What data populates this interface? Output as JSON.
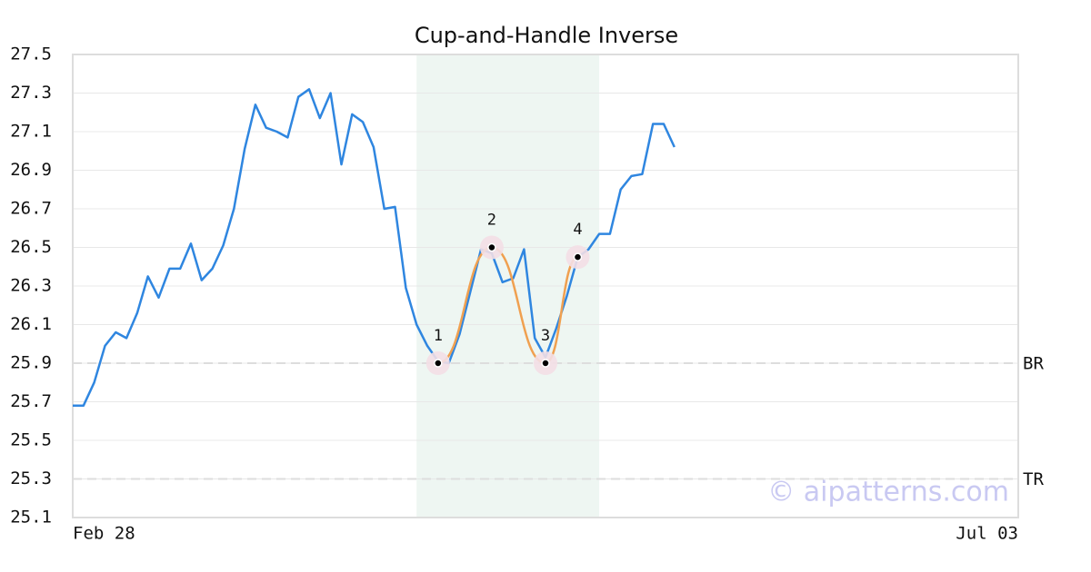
{
  "chart_data": {
    "type": "line",
    "title": "Cup-and-Handle Inverse",
    "categories": [
      "Feb 28",
      null,
      null,
      null,
      null,
      null,
      null,
      null,
      null,
      null,
      null,
      null,
      null,
      null,
      null,
      null,
      null,
      null,
      null,
      null,
      null,
      null,
      null,
      null,
      null,
      null,
      null,
      null,
      null,
      null,
      null,
      null,
      null,
      null,
      null,
      null,
      null,
      null,
      null,
      null,
      null,
      null,
      null,
      null,
      null,
      null,
      null,
      null,
      null,
      null,
      null,
      null,
      null,
      null,
      null,
      null,
      null,
      null,
      null,
      null,
      null,
      null,
      null,
      null,
      null,
      null,
      null,
      null,
      null,
      null,
      null,
      null,
      null,
      null,
      null,
      null,
      null,
      null,
      null,
      null,
      null,
      null,
      null,
      null,
      null,
      null,
      null,
      null,
      "Jul 03"
    ],
    "series": [
      {
        "color": "#2f86e0",
        "values": [
          25.68,
          25.68,
          25.8,
          25.99,
          26.06,
          26.03,
          26.16,
          26.35,
          26.24,
          26.39,
          26.39,
          26.52,
          26.33,
          26.39,
          26.51,
          26.7,
          27.01,
          27.24,
          27.12,
          27.1,
          27.07,
          27.28,
          27.32,
          27.17,
          27.3,
          26.93,
          27.19,
          27.15,
          27.02,
          26.7,
          26.71,
          26.29,
          26.1,
          25.99,
          25.91,
          25.9,
          26.05,
          26.27,
          26.49,
          26.47,
          26.32,
          26.34,
          26.49,
          26.03,
          25.93,
          26.08,
          26.25,
          26.45,
          26.49,
          26.57,
          26.57,
          26.8,
          26.87,
          26.88,
          27.14,
          27.14,
          27.02,
          null,
          null,
          null,
          null,
          null,
          null,
          null,
          null,
          null,
          null,
          null,
          null,
          null,
          null,
          null,
          null,
          null,
          null,
          null,
          null,
          null,
          null,
          null,
          null,
          null,
          null,
          null,
          null,
          null,
          null,
          null,
          null
        ]
      }
    ],
    "pattern_points": {
      "labels": [
        "1",
        "2",
        "3",
        "4"
      ],
      "x_index": [
        34,
        39,
        44,
        47
      ],
      "values": [
        25.9,
        26.5,
        25.9,
        26.45
      ],
      "color": "#f0a050"
    },
    "highlight_range": [
      32,
      49
    ],
    "reference_lines": [
      {
        "label": "BR",
        "value": 25.9
      },
      {
        "label": "TR",
        "value": 25.3
      }
    ],
    "watermark": "© aipatterns.com",
    "ylim": [
      25.1,
      27.5
    ],
    "yticks": [
      25.1,
      25.3,
      25.5,
      25.7,
      25.9,
      26.1,
      26.3,
      26.5,
      26.7,
      26.9,
      27.1,
      27.3,
      27.5
    ],
    "grid": true
  }
}
